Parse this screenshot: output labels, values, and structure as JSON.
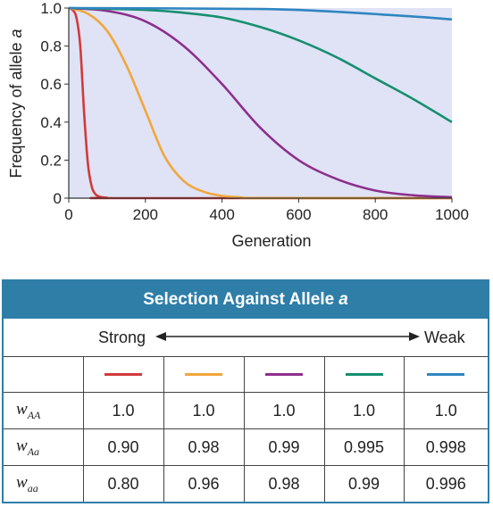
{
  "chart_data": {
    "type": "line",
    "xlabel": "Generation",
    "ylabel_main": "Frequency of allele ",
    "ylabel_italic": "a",
    "xlim": [
      0,
      1000
    ],
    "ylim": [
      0,
      1.0
    ],
    "x_ticks": [
      "0",
      "200",
      "400",
      "600",
      "800",
      "1000"
    ],
    "y_ticks": [
      "0",
      "0.2",
      "0.4",
      "0.6",
      "0.8",
      "1.0"
    ],
    "plot_background": "#dfe3f5",
    "grid": false,
    "series": [
      {
        "color": "#d23a3a",
        "x": [
          0,
          10,
          20,
          30,
          40,
          50,
          60,
          70,
          80,
          100,
          130,
          1000
        ],
        "y": [
          1.0,
          0.99,
          0.95,
          0.8,
          0.45,
          0.18,
          0.06,
          0.02,
          0.008,
          0.002,
          0.0,
          0.0
        ]
      },
      {
        "color": "#f2a63a",
        "x": [
          0,
          50,
          100,
          150,
          200,
          250,
          300,
          350,
          400,
          450,
          500,
          1000
        ],
        "y": [
          1.0,
          0.97,
          0.88,
          0.7,
          0.46,
          0.22,
          0.09,
          0.035,
          0.012,
          0.004,
          0.001,
          0.0
        ]
      },
      {
        "color": "#8e2f8e",
        "x": [
          0,
          100,
          200,
          300,
          400,
          500,
          600,
          700,
          800,
          900,
          1000
        ],
        "y": [
          1.0,
          0.985,
          0.93,
          0.8,
          0.6,
          0.37,
          0.2,
          0.1,
          0.04,
          0.015,
          0.005
        ]
      },
      {
        "color": "#178f6f",
        "x": [
          0,
          200,
          300,
          400,
          500,
          600,
          700,
          800,
          900,
          1000
        ],
        "y": [
          1.0,
          0.99,
          0.975,
          0.95,
          0.9,
          0.83,
          0.74,
          0.63,
          0.52,
          0.4
        ]
      },
      {
        "color": "#2f86c0",
        "x": [
          0,
          500,
          700,
          900,
          1000
        ],
        "y": [
          1.0,
          0.995,
          0.98,
          0.955,
          0.94
        ]
      }
    ]
  },
  "panel": {
    "title_main": "Selection Against Allele",
    "title_italic": "a",
    "header_color": "#2e7ea8",
    "scale_strong": "Strong",
    "scale_weak": "Weak"
  },
  "fitness_table": {
    "swatch_colors": [
      "#d23a3a",
      "#f2a63a",
      "#8e2f8e",
      "#178f6f",
      "#2f86c0"
    ],
    "rows": [
      {
        "label_main": "w",
        "label_sub": "AA",
        "values": [
          "1.0",
          "1.0",
          "1.0",
          "1.0",
          "1.0"
        ]
      },
      {
        "label_main": "w",
        "label_sub": "Aa",
        "values": [
          "0.90",
          "0.98",
          "0.99",
          "0.995",
          "0.998"
        ]
      },
      {
        "label_main": "w",
        "label_sub": "aa",
        "values": [
          "0.80",
          "0.96",
          "0.98",
          "0.99",
          "0.996"
        ]
      }
    ]
  }
}
